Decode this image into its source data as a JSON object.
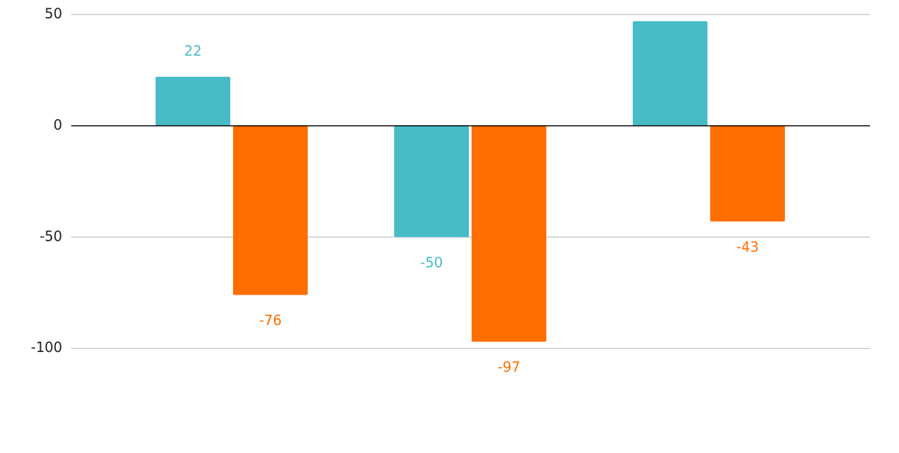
{
  "chart_data": {
    "type": "bar",
    "categories": [
      null,
      null,
      null
    ],
    "series": [
      {
        "color": "#47bcc6",
        "values": [
          22,
          -50,
          47
        ]
      },
      {
        "color": "#ff6e00",
        "values": [
          -76,
          -97,
          -43
        ]
      }
    ],
    "ylim": [
      -147,
      56.5
    ],
    "yticks": [
      50,
      0,
      -50,
      -100
    ],
    "grid": true
  }
}
